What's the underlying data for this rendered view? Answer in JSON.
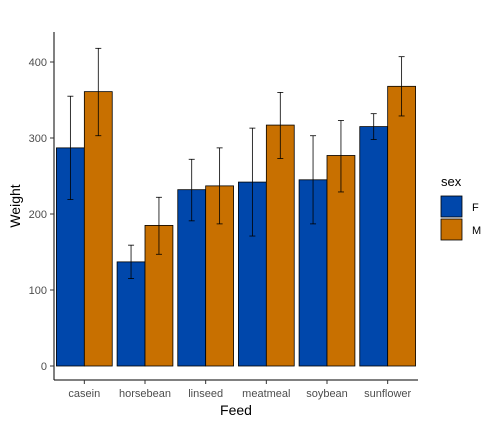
{
  "chart_data": {
    "type": "bar",
    "xlabel": "Feed",
    "ylabel": "Weight",
    "ylim": [
      0,
      440
    ],
    "yticks": [
      0,
      100,
      200,
      300,
      400
    ],
    "categories": [
      "casein",
      "horsebean",
      "linseed",
      "meatmeal",
      "soybean",
      "sunflower"
    ],
    "legend": {
      "title": "sex",
      "position": "right"
    },
    "grid": false,
    "error_bars": true,
    "series": [
      {
        "name": "F",
        "color": "#0047ab",
        "values": [
          287,
          137,
          232,
          242,
          245,
          315
        ],
        "error_low": [
          219,
          115,
          191,
          171,
          187,
          298
        ],
        "error_high": [
          355,
          159,
          272,
          313,
          303,
          332
        ]
      },
      {
        "name": "M",
        "color": "#c87000",
        "values": [
          361,
          185,
          237,
          317,
          277,
          368
        ],
        "error_low": [
          303,
          147,
          187,
          273,
          229,
          329
        ],
        "error_high": [
          418,
          222,
          287,
          360,
          323,
          407
        ]
      }
    ]
  }
}
